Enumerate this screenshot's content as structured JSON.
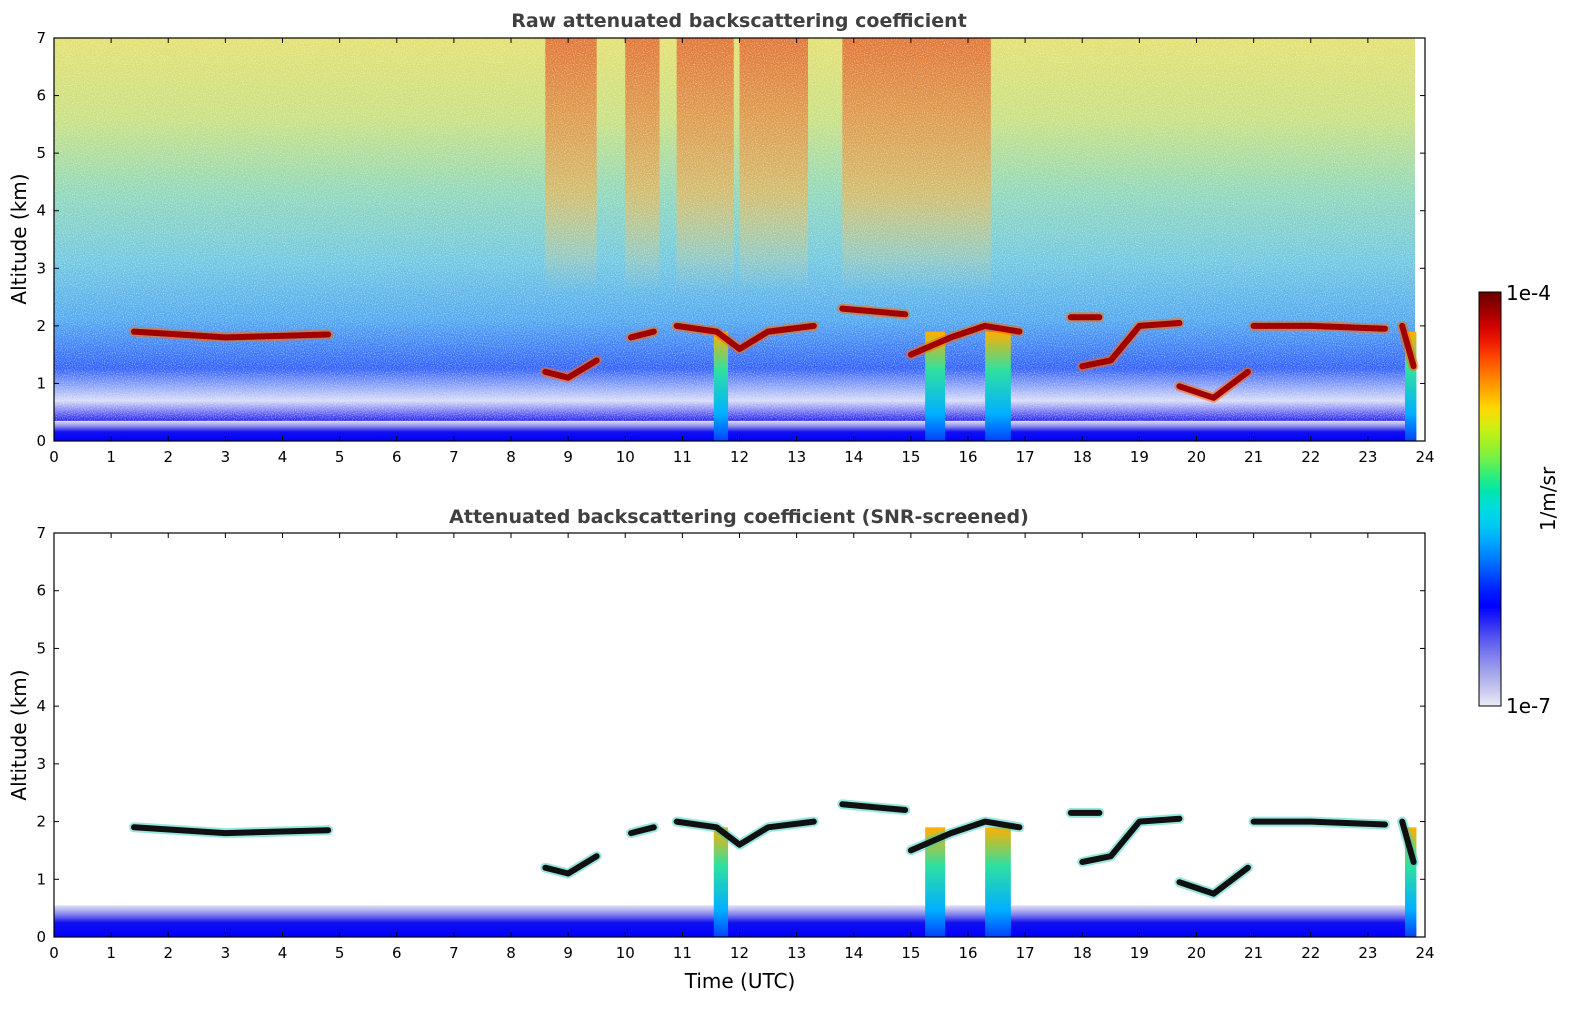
{
  "figure": {
    "colorbar": {
      "max_label": "1e-4",
      "min_label": "1e-7",
      "unit_label": "1/m/sr",
      "colors": [
        "#ebebf7",
        "#c8c8f0",
        "#a5a5eb",
        "#8080ee",
        "#5a5af0",
        "#2d2df5",
        "#0000ff",
        "#0020ff",
        "#0050ff",
        "#0080ff",
        "#00aaff",
        "#00ccee",
        "#00dddd",
        "#00e6aa",
        "#33ee77",
        "#77f044",
        "#aaf022",
        "#d8ec10",
        "#ffd800",
        "#ffaa00",
        "#ff7a00",
        "#ff4a00",
        "#ee1a00",
        "#cc0000",
        "#990000",
        "#660000"
      ]
    },
    "x_axis_label": "Time (UTC)"
  },
  "chart_data": [
    {
      "type": "heatmap",
      "title": "Raw attenuated backscattering coefficient",
      "xlabel": "",
      "ylabel": "Altitude (km)",
      "xlim": [
        0,
        24
      ],
      "ylim": [
        0,
        7
      ],
      "xticks": [
        "0",
        "1",
        "2",
        "3",
        "4",
        "5",
        "6",
        "7",
        "8",
        "9",
        "10",
        "11",
        "12",
        "13",
        "14",
        "15",
        "16",
        "17",
        "18",
        "19",
        "20",
        "21",
        "22",
        "23",
        "24"
      ],
      "yticks": [
        "0",
        "1",
        "2",
        "3",
        "4",
        "5",
        "6",
        "7"
      ],
      "color_scale": "log10",
      "color_range": [
        1e-07,
        0.0001
      ],
      "features": {
        "surface_layer_top_km": 0.35,
        "high_signal_columns_utc": [
          [
            8.6,
            9.5
          ],
          [
            10.0,
            10.6
          ],
          [
            10.9,
            11.9
          ],
          [
            12.0,
            13.2
          ],
          [
            13.8,
            16.4
          ]
        ],
        "cloud_layers": [
          {
            "name": "Cloud base",
            "points": [
              [
                1.4,
                1.9
              ],
              [
                3.0,
                1.8
              ],
              [
                4.8,
                1.85
              ]
            ]
          },
          {
            "name": "Cloud base",
            "points": [
              [
                8.6,
                1.2
              ],
              [
                9.0,
                1.1
              ],
              [
                9.5,
                1.4
              ]
            ]
          },
          {
            "name": "Cloud base",
            "points": [
              [
                10.1,
                1.8
              ],
              [
                10.5,
                1.9
              ]
            ]
          },
          {
            "name": "Cloud base",
            "points": [
              [
                10.9,
                2.0
              ],
              [
                11.6,
                1.9
              ],
              [
                12.0,
                1.6
              ],
              [
                12.5,
                1.9
              ],
              [
                13.3,
                2.0
              ]
            ]
          },
          {
            "name": "Cloud base",
            "points": [
              [
                13.8,
                2.3
              ],
              [
                14.9,
                2.2
              ]
            ]
          },
          {
            "name": "Cloud base",
            "points": [
              [
                15.0,
                1.5
              ],
              [
                15.7,
                1.8
              ],
              [
                16.3,
                2.0
              ],
              [
                16.9,
                1.9
              ]
            ]
          },
          {
            "name": "Cloud base",
            "points": [
              [
                17.8,
                2.15
              ],
              [
                18.3,
                2.15
              ]
            ]
          },
          {
            "name": "Cloud base",
            "points": [
              [
                18.0,
                1.3
              ],
              [
                18.5,
                1.4
              ],
              [
                19.0,
                2.0
              ],
              [
                19.7,
                2.05
              ]
            ]
          },
          {
            "name": "Cloud base",
            "points": [
              [
                19.7,
                0.95
              ],
              [
                20.3,
                0.75
              ],
              [
                20.9,
                1.2
              ]
            ]
          },
          {
            "name": "Cloud base",
            "points": [
              [
                21.0,
                2.0
              ],
              [
                22.0,
                2.0
              ],
              [
                23.3,
                1.95
              ]
            ]
          },
          {
            "name": "Cloud base",
            "points": [
              [
                23.6,
                2.0
              ],
              [
                23.8,
                1.3
              ]
            ]
          }
        ],
        "precipitation_shafts_utc": [
          [
            11.55,
            11.8
          ],
          [
            15.25,
            15.6
          ],
          [
            16.3,
            16.75
          ],
          [
            23.65,
            23.85
          ]
        ]
      }
    },
    {
      "type": "heatmap",
      "title": "Attenuated backscattering coefficient (SNR-screened)",
      "xlabel": "Time (UTC)",
      "ylabel": "Altitude (km)",
      "xlim": [
        0,
        24
      ],
      "ylim": [
        0,
        7
      ],
      "xticks": [
        "0",
        "1",
        "2",
        "3",
        "4",
        "5",
        "6",
        "7",
        "8",
        "9",
        "10",
        "11",
        "12",
        "13",
        "14",
        "15",
        "16",
        "17",
        "18",
        "19",
        "20",
        "21",
        "22",
        "23",
        "24"
      ],
      "yticks": [
        "0",
        "1",
        "2",
        "3",
        "4",
        "5",
        "6",
        "7"
      ],
      "color_scale": "log10",
      "color_range": [
        1e-07,
        0.0001
      ],
      "screened_outside_features": true
    }
  ]
}
